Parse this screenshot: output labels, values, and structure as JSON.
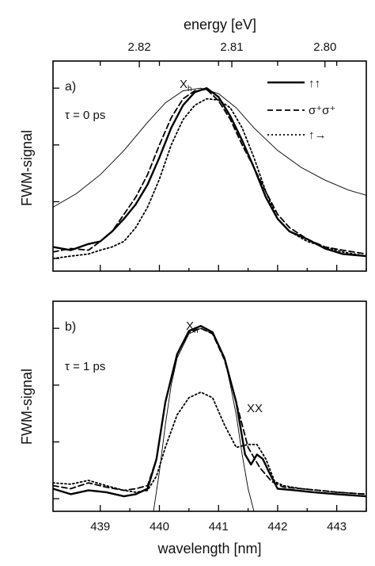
{
  "chart_data": {
    "type": "line",
    "x_axis": {
      "title": "wavelength [nm]",
      "range": [
        438.2,
        443.5
      ],
      "ticks": [
        439,
        440,
        441,
        442,
        443
      ],
      "tick_labels": [
        "439",
        "440",
        "441",
        "442",
        "443"
      ]
    },
    "top_axis": {
      "title": "energy [eV]",
      "ticks": [
        2.82,
        2.81,
        2.8
      ],
      "tick_labels": [
        "2.82",
        "2.81",
        "2.80"
      ]
    },
    "legend": {
      "placement": "top-right",
      "entries": [
        {
          "label": "↑↑",
          "style": "solid"
        },
        {
          "label": "σ⁺σ⁺",
          "style": "dashed"
        },
        {
          "label": "↑→",
          "style": "dotted"
        }
      ]
    },
    "panels": [
      {
        "id": "a",
        "panel_label": "a)",
        "tau_label": "τ = 0 ps",
        "ylabel": "FWM-signal",
        "yscale": "log",
        "ylim": [
          0.0006,
          3
        ],
        "annotations": [
          "X",
          "h"
        ],
        "series": [
          {
            "style": "solid-thick",
            "x": [
              438.2,
              438.5,
              438.8,
              439.0,
              439.2,
              439.4,
              439.6,
              439.8,
              440.0,
              440.2,
              440.4,
              440.6,
              440.8,
              441.0,
              441.2,
              441.4,
              441.6,
              441.8,
              442.0,
              442.2,
              442.5,
              442.8,
              443.1,
              443.5
            ],
            "y": [
              0.0016,
              0.0014,
              0.0018,
              0.002,
              0.003,
              0.005,
              0.009,
              0.02,
              0.06,
              0.2,
              0.5,
              0.85,
              1.0,
              0.7,
              0.32,
              0.12,
              0.04,
              0.012,
              0.005,
              0.003,
              0.0022,
              0.0015,
              0.0012,
              0.0011
            ]
          },
          {
            "style": "dashed",
            "x": [
              438.2,
              438.5,
              438.8,
              439.0,
              439.2,
              439.4,
              439.6,
              439.8,
              440.0,
              440.2,
              440.4,
              440.6,
              440.8,
              441.0,
              441.2,
              441.4,
              441.6,
              441.8,
              442.0,
              442.2,
              442.5,
              442.8,
              443.1,
              443.5
            ],
            "y": [
              0.0013,
              0.0015,
              0.0014,
              0.002,
              0.003,
              0.006,
              0.012,
              0.03,
              0.1,
              0.3,
              0.65,
              0.9,
              0.95,
              0.6,
              0.28,
              0.1,
              0.04,
              0.015,
              0.006,
              0.0035,
              0.0022,
              0.0016,
              0.0014,
              0.0012
            ]
          },
          {
            "style": "dotted",
            "x": [
              438.2,
              438.5,
              438.8,
              439.0,
              439.2,
              439.4,
              439.6,
              439.8,
              440.0,
              440.2,
              440.4,
              440.6,
              440.8,
              441.0,
              441.2,
              441.4,
              441.6,
              441.8,
              442.0,
              442.2,
              442.5,
              442.8,
              443.1,
              443.5
            ],
            "y": [
              0.001,
              0.0011,
              0.0012,
              0.0014,
              0.0016,
              0.002,
              0.0035,
              0.008,
              0.025,
              0.1,
              0.28,
              0.5,
              0.65,
              0.62,
              0.45,
              0.2,
              0.06,
              0.015,
              0.005,
              0.003,
              0.002,
              0.0016,
              0.0013,
              0.0011
            ]
          },
          {
            "style": "thin",
            "x": [
              438.2,
              438.6,
              439.0,
              439.4,
              439.8,
              440.1,
              440.4,
              440.7,
              441.0,
              441.3,
              441.6,
              442.0,
              442.4,
              442.8,
              443.2,
              443.5
            ],
            "y": [
              0.008,
              0.014,
              0.03,
              0.08,
              0.25,
              0.55,
              0.9,
              1.0,
              0.8,
              0.45,
              0.2,
              0.08,
              0.04,
              0.024,
              0.016,
              0.013
            ]
          }
        ]
      },
      {
        "id": "b",
        "panel_label": "b)",
        "tau_label": "τ = 1 ps",
        "ylabel": "FWM-signal",
        "yscale": "log",
        "ylim": [
          0.0006,
          3
        ],
        "annotations": [
          "X",
          "h",
          "XX"
        ],
        "series": [
          {
            "style": "solid-thick",
            "x": [
              438.2,
              438.5,
              438.8,
              439.1,
              439.4,
              439.6,
              439.8,
              439.95,
              440.1,
              440.3,
              440.5,
              440.7,
              440.9,
              441.1,
              441.3,
              441.45,
              441.55,
              441.65,
              441.75,
              441.85,
              442.0,
              442.3,
              442.6,
              443.0,
              443.5
            ],
            "y": [
              0.0015,
              0.0012,
              0.0014,
              0.0013,
              0.0011,
              0.0012,
              0.0015,
              0.005,
              0.05,
              0.35,
              0.9,
              1.1,
              0.85,
              0.3,
              0.05,
              0.006,
              0.004,
              0.006,
              0.005,
              0.003,
              0.0015,
              0.0014,
              0.0013,
              0.0012,
              0.0011
            ]
          },
          {
            "style": "dashed",
            "x": [
              438.2,
              438.5,
              438.8,
              439.1,
              439.4,
              439.6,
              439.8,
              439.95,
              440.1,
              440.3,
              440.5,
              440.7,
              440.9,
              441.1,
              441.3,
              441.5,
              441.7,
              441.9,
              442.1,
              442.4,
              442.7,
              443.0,
              443.5
            ],
            "y": [
              0.0017,
              0.0015,
              0.0019,
              0.0016,
              0.0014,
              0.0015,
              0.0017,
              0.005,
              0.05,
              0.35,
              0.85,
              1.0,
              0.8,
              0.28,
              0.05,
              0.008,
              0.0035,
              0.002,
              0.0016,
              0.0015,
              0.0014,
              0.0013,
              0.0012
            ]
          },
          {
            "style": "dotted",
            "x": [
              438.2,
              438.5,
              438.8,
              439.1,
              439.4,
              439.6,
              439.8,
              439.95,
              440.1,
              440.3,
              440.5,
              440.7,
              440.9,
              441.1,
              441.3,
              441.5,
              441.65,
              441.8,
              441.95,
              442.1,
              442.4,
              442.7,
              443.0,
              443.5
            ],
            "y": [
              0.0019,
              0.0018,
              0.0021,
              0.0017,
              0.0014,
              0.0013,
              0.0014,
              0.0025,
              0.008,
              0.03,
              0.06,
              0.075,
              0.06,
              0.02,
              0.008,
              0.009,
              0.009,
              0.005,
              0.002,
              0.0017,
              0.0015,
              0.0014,
              0.0013,
              0.0012
            ]
          },
          {
            "style": "thin",
            "x": [
              439.9,
              440.0,
              440.1,
              440.2,
              440.3,
              440.5,
              440.7,
              440.9,
              441.1,
              441.2,
              441.3,
              441.4,
              441.5,
              441.6
            ],
            "y": [
              0.0006,
              0.003,
              0.02,
              0.1,
              0.3,
              0.8,
              1.0,
              0.8,
              0.3,
              0.1,
              0.03,
              0.006,
              0.0015,
              0.0006
            ]
          }
        ]
      }
    ]
  }
}
